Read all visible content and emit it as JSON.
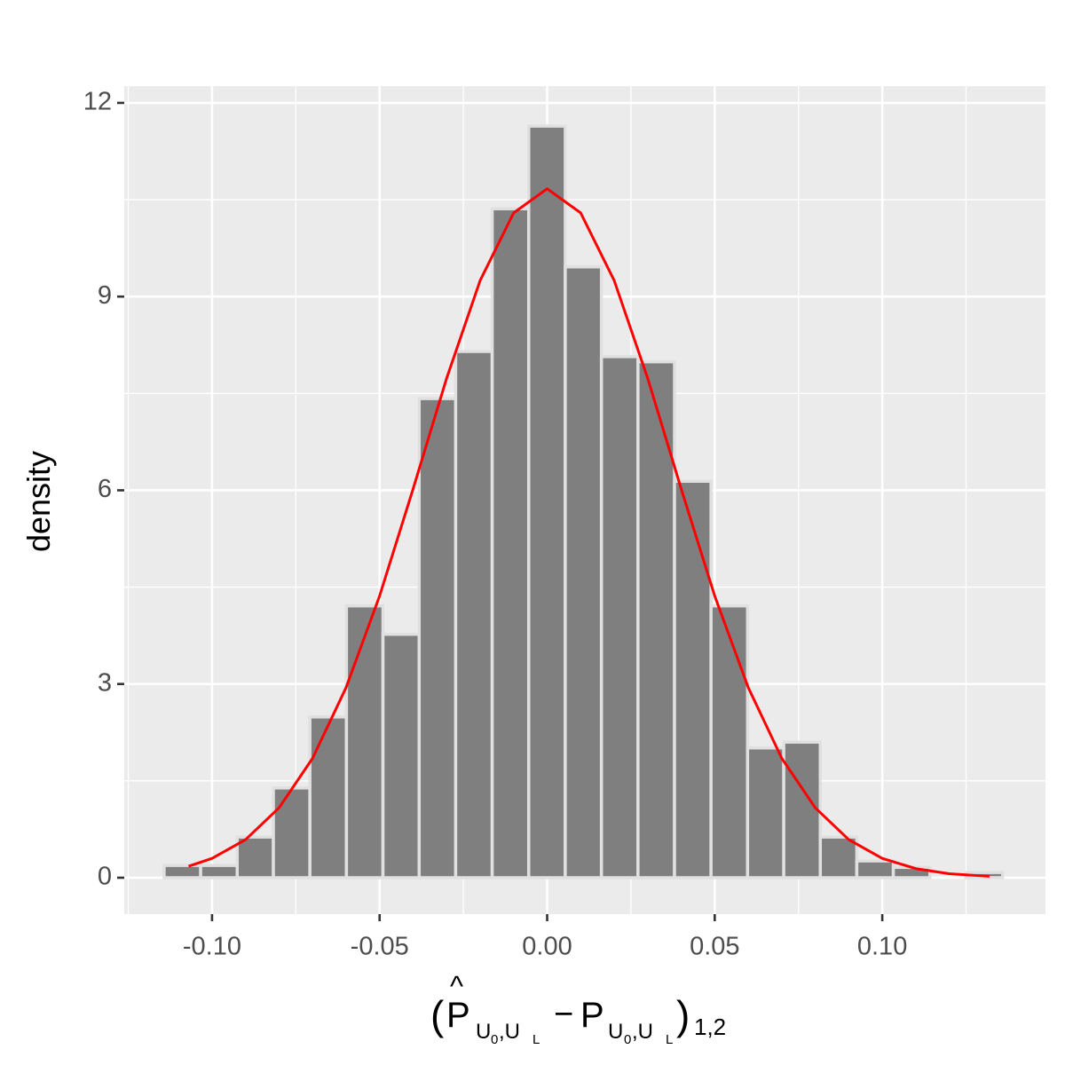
{
  "chart_data": {
    "type": "histogram",
    "ylabel": "density",
    "xlabel_parts": [
      "(",
      "P",
      "^",
      "U",
      "0",
      ",U",
      "L",
      "−",
      "P",
      "U",
      "0",
      ",U",
      "L",
      ")",
      "1,2"
    ],
    "bins": [
      -0.1143,
      -0.1034,
      -0.0925,
      -0.0817,
      -0.0708,
      -0.0599,
      -0.049,
      -0.0382,
      -0.0273,
      -0.0164,
      -0.0055,
      0.0054,
      0.0162,
      0.0271,
      0.038,
      0.0489,
      0.0598,
      0.0706,
      0.0815,
      0.0924,
      0.1033,
      0.1142,
      0.125,
      0.1359
    ],
    "values": [
      0.19,
      0.19,
      0.63,
      1.39,
      2.49,
      4.21,
      3.77,
      7.42,
      8.15,
      10.36,
      11.64,
      9.46,
      8.07,
      7.99,
      6.14,
      4.21,
      2.01,
      2.1,
      0.63,
      0.26,
      0.16,
      0,
      0.08
    ],
    "color": "#7f7f7f",
    "bar_edge_color": "#e0e0e0",
    "density_curve": {
      "color": "#ff0000",
      "x": [
        -0.107,
        -0.1,
        -0.09,
        -0.08,
        -0.07,
        -0.06,
        -0.05,
        -0.04,
        -0.03,
        -0.02,
        -0.01,
        0,
        0.01,
        0.02,
        0.03,
        0.04,
        0.05,
        0.06,
        0.07,
        0.08,
        0.09,
        0.1,
        0.11,
        0.12,
        0.132
      ],
      "values": [
        0.178,
        0.299,
        0.59,
        1.083,
        1.85,
        2.946,
        4.364,
        6.022,
        7.735,
        9.249,
        10.296,
        10.67,
        10.296,
        9.249,
        7.735,
        6.022,
        4.364,
        2.946,
        1.85,
        1.083,
        0.59,
        0.299,
        0.141,
        0.062,
        0.021
      ]
    },
    "xlim": [
      -0.1262,
      0.1487
    ],
    "ylim": [
      -0.564,
      12.26
    ],
    "xticks": [
      {
        "value": -0.1,
        "label": "-0.10"
      },
      {
        "value": -0.05,
        "label": "-0.05"
      },
      {
        "value": 0,
        "label": "0.00"
      },
      {
        "value": 0.05,
        "label": "0.05"
      },
      {
        "value": 0.1,
        "label": "0.10"
      }
    ],
    "yticks": [
      0,
      3,
      6,
      9,
      12
    ],
    "xminorticks": [
      -0.125,
      -0.075,
      -0.025,
      0.025,
      0.075,
      0.125
    ],
    "yminorticks": [
      1.5,
      4.5,
      7.5,
      10.5
    ],
    "grid": true
  }
}
